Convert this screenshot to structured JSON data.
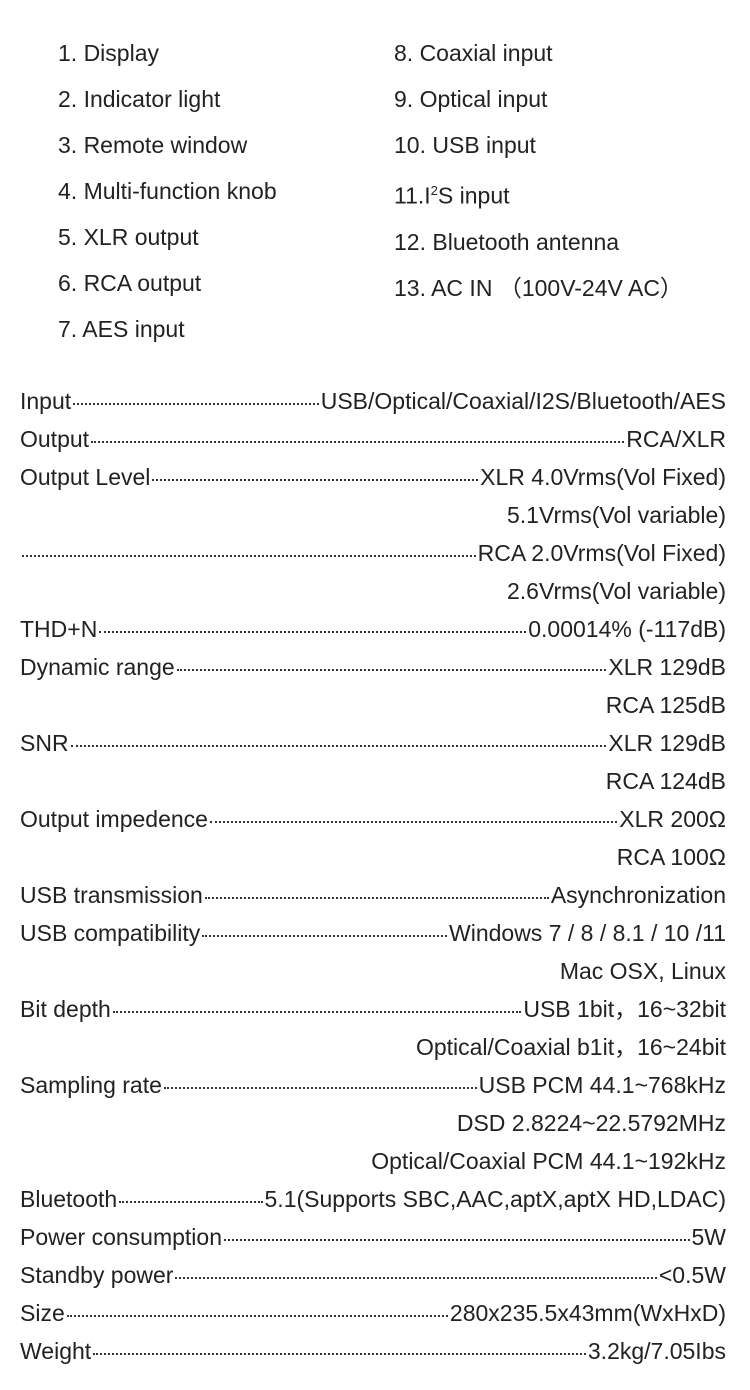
{
  "parts": {
    "left": [
      {
        "num": "1.",
        "label": "Display"
      },
      {
        "num": "2.",
        "label": "Indicator light"
      },
      {
        "num": "3.",
        "label": "Remote window"
      },
      {
        "num": "4.",
        "label": "Multi-function knob"
      },
      {
        "num": "5.",
        "label": " XLR output"
      },
      {
        "num": "6.",
        "label": "RCA output"
      },
      {
        "num": "7.",
        "label": "AES input"
      }
    ],
    "right": [
      {
        "num": "8.",
        "label": " Coaxial input"
      },
      {
        "num": "9.",
        "label": " Optical input"
      },
      {
        "num": "10.",
        "label": "USB input"
      },
      {
        "num": "11.",
        "label": "I²S input",
        "html": true
      },
      {
        "num": "12.",
        "label": "Bluetooth antenna"
      },
      {
        "num": "13.",
        "label": "AC IN （100V-24V AC）"
      }
    ]
  },
  "specs": [
    {
      "label": "Input",
      "value": "USB/Optical/Coaxial/I2S/Bluetooth/AES"
    },
    {
      "label": "Output",
      "value": "RCA/XLR"
    },
    {
      "label": "Output Level",
      "value": "XLR 4.0Vrms(Vol Fixed)"
    },
    {
      "continuation": "5.1Vrms(Vol variable)"
    },
    {
      "label": "",
      "value": "RCA 2.0Vrms(Vol Fixed)"
    },
    {
      "continuation": "2.6Vrms(Vol variable)"
    },
    {
      "label": "THD+N",
      "value": "0.00014% (-117dB)"
    },
    {
      "label": "Dynamic range",
      "value": "XLR 129dB"
    },
    {
      "continuation": "RCA 125dB"
    },
    {
      "label": "SNR",
      "value": "XLR 129dB"
    },
    {
      "continuation": "RCA 124dB"
    },
    {
      "label": "Output impedence",
      "value": "XLR 200Ω"
    },
    {
      "continuation": "RCA 100Ω"
    },
    {
      "label": "USB transmission",
      "value": "Asynchronization"
    },
    {
      "label": "USB compatibility ",
      "value": "Windows 7 / 8 / 8.1 / 10 /11"
    },
    {
      "continuation": "Mac OSX, Linux"
    },
    {
      "label": "Bit depth",
      "value": "USB 1bit，16~32bit"
    },
    {
      "continuation": "Optical/Coaxial b1it，16~24bit"
    },
    {
      "label": "Sampling rate",
      "value": "USB PCM 44.1~768kHz"
    },
    {
      "continuation": "DSD 2.8224~22.5792MHz"
    },
    {
      "continuation": "Optical/Coaxial PCM 44.1~192kHz"
    },
    {
      "label": "Bluetooth",
      "value": "5.1(Supports SBC,AAC,aptX,aptX HD,LDAC)"
    },
    {
      "label": "Power consumption",
      "value": "5W"
    },
    {
      "label": "Standby power",
      "value": "<0.5W"
    },
    {
      "label": "Size",
      "value": "280x235.5x43mm(WxHxD)"
    },
    {
      "label": "Weight",
      "value": " 3.2kg/7.05Ibs"
    }
  ],
  "colors": {
    "background": "#ffffff",
    "text": "#222222",
    "dots": "#333333"
  },
  "typography": {
    "parts_fontsize": 23,
    "parts_lineheight": 46,
    "specs_fontsize": 23,
    "specs_lineheight": 38
  }
}
